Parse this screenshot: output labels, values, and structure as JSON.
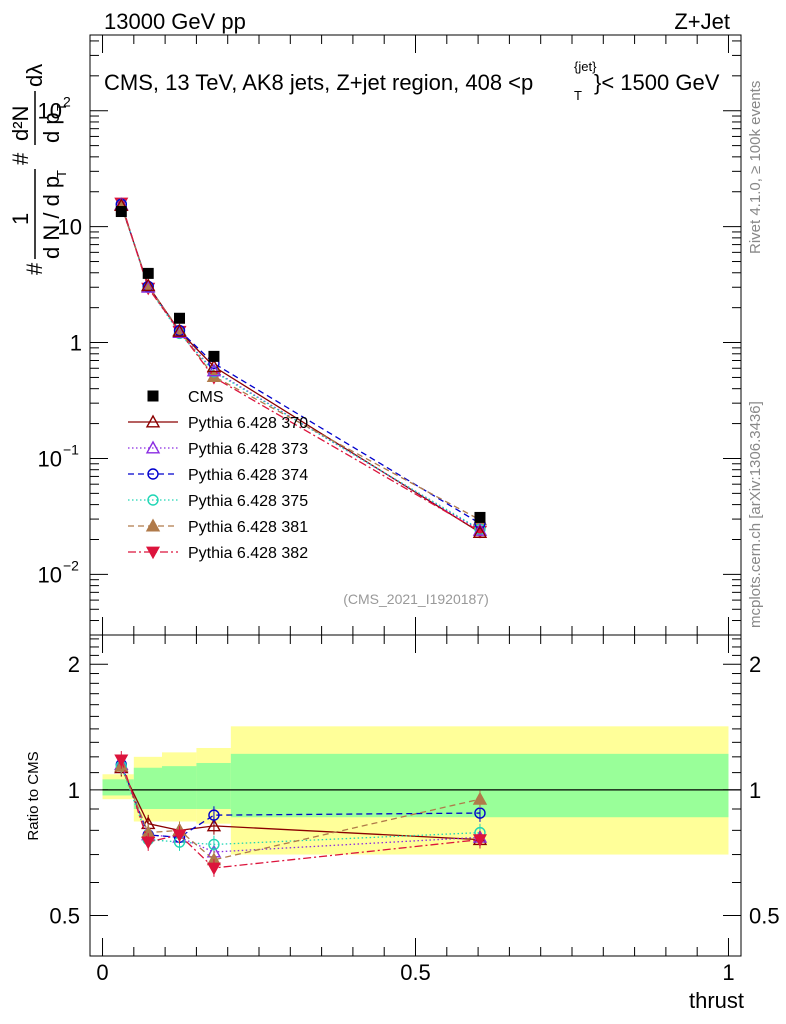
{
  "header": {
    "left": "13000 GeV pp",
    "right": "Z+Jet"
  },
  "plot_title": "CMS, 13 TeV, AK8 jets, Z+jet region, 408 <p",
  "plot_title_sup": "{jet}",
  "plot_title_sub": "T",
  "plot_title_tail": "}< 1500 GeV",
  "side_text_top": "Rivet 4.1.0, ≥ 100k events",
  "side_text_bottom": "mcplots.cern.ch [arXiv:1306.3436]",
  "analysis_label": "(CMS_2021_I1920187)",
  "ylabel_parts": {
    "hash1": "#",
    "one": "1",
    "dn": "d N / d p",
    "t1": "T",
    "hash2": "#",
    "d2n": "d²N",
    "dpt": "d p",
    "t2": "T",
    "dlambda": "dλ"
  },
  "colors": {
    "cms": "#000000",
    "p370": "#8b0000",
    "p373": "#8a2be2",
    "p374": "#0000cd",
    "p375": "#20d6b5",
    "p381": "#b07a4a",
    "p382": "#dc143c",
    "band_yellow": "#ffff99",
    "band_green": "#99ff99"
  },
  "chart_data": [
    {
      "type": "scatter",
      "panel": "main",
      "xlim": [
        -0.02,
        1.02
      ],
      "ylim": [
        0.003,
        450
      ],
      "yscale": "log",
      "y_ticks": [
        {
          "value": 0.01,
          "base": "10",
          "exp": "−2"
        },
        {
          "value": 0.1,
          "base": "10",
          "exp": "−1"
        },
        {
          "value": 1,
          "base": "1",
          "exp": ""
        },
        {
          "value": 10,
          "base": "10",
          "exp": ""
        },
        {
          "value": 100,
          "base": "10",
          "exp": "2"
        }
      ],
      "x": [
        0.03,
        0.073,
        0.123,
        0.178,
        0.603
      ],
      "series": [
        {
          "name": "CMS",
          "key": "cms",
          "marker": "square",
          "dash": "",
          "values": [
            13.5,
            3.95,
            1.62,
            0.76,
            0.031
          ]
        },
        {
          "name": "Pythia 6.428 370",
          "key": "p370",
          "marker": "tri-open",
          "dash": "",
          "values": [
            15.2,
            3.1,
            1.25,
            0.62,
            0.023
          ]
        },
        {
          "name": "Pythia 6.428 373",
          "key": "p373",
          "marker": "tri-open",
          "dash": "1.5,2.5",
          "values": [
            15.5,
            3.0,
            1.22,
            0.57,
            0.024
          ]
        },
        {
          "name": "Pythia 6.428 374",
          "key": "p374",
          "marker": "circle-open",
          "dash": "6,4",
          "values": [
            15.6,
            3.05,
            1.27,
            0.66,
            0.0275
          ]
        },
        {
          "name": "Pythia 6.428 375",
          "key": "p375",
          "marker": "circle-open",
          "dash": "1.5,2.5",
          "values": [
            15.6,
            3.0,
            1.2,
            0.56,
            0.0245
          ]
        },
        {
          "name": "Pythia 6.428 381",
          "key": "p381",
          "marker": "tri-solid",
          "dash": "6,4",
          "values": [
            15.4,
            3.05,
            1.27,
            0.51,
            0.0295
          ]
        },
        {
          "name": "Pythia 6.428 382",
          "key": "p382",
          "marker": "tri-down",
          "dash": "8,3,2,3",
          "values": [
            16.0,
            2.95,
            1.25,
            0.5,
            0.0235
          ]
        }
      ]
    },
    {
      "type": "scatter",
      "panel": "ratio",
      "xlabel": "thrust",
      "ylabel": "Ratio to CMS",
      "xlim": [
        -0.02,
        1.02
      ],
      "ylim": [
        0.4,
        2.35
      ],
      "yscale": "log",
      "y_ticks": [
        0.5,
        1,
        2
      ],
      "x_ticks": [
        0,
        0.5,
        1
      ],
      "x_tick_labels": [
        "0",
        "0.5",
        "1"
      ],
      "x": [
        0.03,
        0.073,
        0.123,
        0.178,
        0.603
      ],
      "reference_line": 1,
      "bands": [
        {
          "x0": 0.0,
          "x1": 0.05,
          "yellow": [
            0.95,
            1.09
          ],
          "green": [
            0.97,
            1.06
          ]
        },
        {
          "x0": 0.05,
          "x1": 0.095,
          "yellow": [
            0.84,
            1.2
          ],
          "green": [
            0.9,
            1.13
          ]
        },
        {
          "x0": 0.095,
          "x1": 0.15,
          "yellow": [
            0.84,
            1.23
          ],
          "green": [
            0.9,
            1.14
          ]
        },
        {
          "x0": 0.15,
          "x1": 0.205,
          "yellow": [
            0.83,
            1.26
          ],
          "green": [
            0.9,
            1.16
          ]
        },
        {
          "x0": 0.205,
          "x1": 1.0,
          "yellow": [
            0.7,
            1.42
          ],
          "green": [
            0.86,
            1.22
          ]
        }
      ],
      "series": [
        {
          "name": "Pythia 6.428 370",
          "key": "p370",
          "marker": "tri-open",
          "dash": "",
          "values": [
            1.13,
            0.83,
            0.8,
            0.82,
            0.76
          ]
        },
        {
          "name": "Pythia 6.428 373",
          "key": "p373",
          "marker": "tri-open",
          "dash": "1.5,2.5",
          "values": [
            1.15,
            0.78,
            0.77,
            0.71,
            0.77
          ]
        },
        {
          "name": "Pythia 6.428 374",
          "key": "p374",
          "marker": "circle-open",
          "dash": "6,4",
          "values": [
            1.15,
            0.78,
            0.77,
            0.87,
            0.88
          ]
        },
        {
          "name": "Pythia 6.428 375",
          "key": "p375",
          "marker": "circle-open",
          "dash": "1.5,2.5",
          "values": [
            1.14,
            0.76,
            0.75,
            0.74,
            0.79
          ]
        },
        {
          "name": "Pythia 6.428 381",
          "key": "p381",
          "marker": "tri-solid",
          "dash": "6,4",
          "values": [
            1.14,
            0.79,
            0.8,
            0.68,
            0.95
          ]
        },
        {
          "name": "Pythia 6.428 382",
          "key": "p382",
          "marker": "tri-down",
          "dash": "8,3,2,3",
          "values": [
            1.18,
            0.75,
            0.78,
            0.65,
            0.76
          ]
        }
      ]
    }
  ]
}
